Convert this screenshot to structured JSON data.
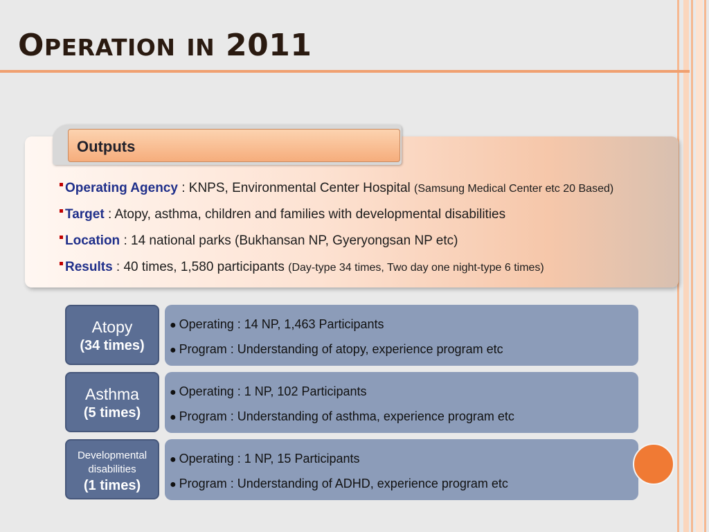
{
  "title": {
    "main": "O",
    "small1": "PERATION",
    "small2": "IN",
    "year": "2011"
  },
  "outputs": {
    "tab_label": "Outputs",
    "items": [
      {
        "key": "Operating Agency",
        "text": " : KNPS, Environmental Center Hospital ",
        "note": "(Samsung Medical Center etc 20 Based)"
      },
      {
        "key": "Target",
        "text": " : Atopy, asthma, children and families with developmental disabilities",
        "note": ""
      },
      {
        "key": "Location",
        "text": " : 14 national parks (Bukhansan NP, Gyeryongsan NP etc)",
        "note": ""
      },
      {
        "key": "Results",
        "text": " : 40 times, 1,580 participants ",
        "note": "(Day-type 34 times, Two day one night-type 6 times)"
      }
    ]
  },
  "programs": [
    {
      "name": "Atopy",
      "times": "(34 times)",
      "operating": "Operating : 14 NP,  1,463 Participants",
      "program": "Program : Understanding of atopy, experience program etc"
    },
    {
      "name": "Asthma",
      "times": "(5 times)",
      "operating": "Operating : 1 NP, 102 Participants",
      "program": "Program : Understanding of asthma, experience program etc"
    },
    {
      "name_line1": "Developmental",
      "name_line2": "disabilities",
      "times": "(1 times)",
      "operating": "Operating : 1 NP, 15 Participants",
      "program": "Program : Understanding of ADHD, experience program etc"
    }
  ],
  "colors": {
    "title_rule": "#f0a070",
    "accent_circle": "#f07a34",
    "category_box": "#5b6e94",
    "detail_box": "#8c9cb9",
    "key_text": "#1f2f8a"
  }
}
